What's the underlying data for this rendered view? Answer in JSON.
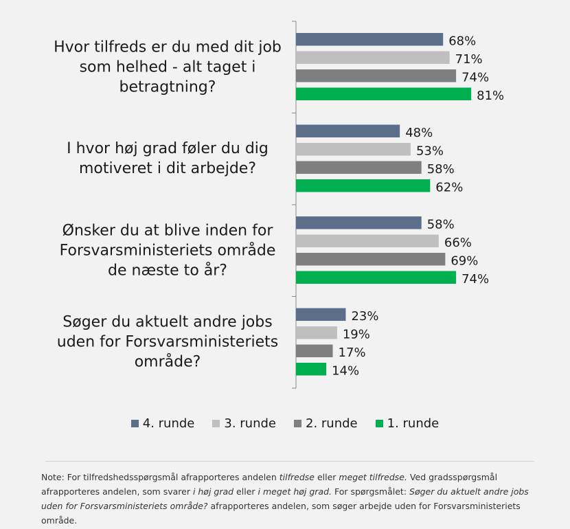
{
  "chart_data": {
    "type": "bar",
    "orientation": "horizontal",
    "categories": [
      "Hvor tilfreds er du med dit job som helhed - alt taget i betragtning?",
      "I hvor høj grad føler du dig motiveret i dit arbejde?",
      "Ønsker du at blive inden for Forsvarsministeriets område de næste to år?",
      "Søger du aktuelt andre jobs uden for Forsvarsministeriets område?"
    ],
    "series": [
      {
        "name": "4. runde",
        "color": "#5b6e8a",
        "values": [
          68,
          48,
          58,
          23
        ],
        "labels": [
          "68%",
          "48%",
          "58%",
          "23%"
        ]
      },
      {
        "name": "3. runde",
        "color": "#bfbfbf",
        "values": [
          71,
          53,
          66,
          19
        ],
        "labels": [
          "71%",
          "53%",
          "66%",
          "19%"
        ]
      },
      {
        "name": "2. runde",
        "color": "#7f7f7f",
        "values": [
          74,
          58,
          69,
          17
        ],
        "labels": [
          "74%",
          "58%",
          "69%",
          "17%"
        ]
      },
      {
        "name": "1. runde",
        "color": "#00b050",
        "values": [
          81,
          62,
          74,
          14
        ],
        "labels": [
          "81%",
          "62%",
          "74%",
          "14%"
        ]
      }
    ],
    "legend_position": "bottom",
    "grid": false,
    "xlim": [
      0,
      100
    ]
  },
  "category_lines": [
    [
      "Hvor tilfreds er du med dit job",
      "som helhed - alt taget i",
      "betragtning?"
    ],
    [
      "I hvor høj grad føler du dig",
      "motiveret i dit arbejde?"
    ],
    [
      "Ønsker du at blive inden for",
      "Forsvarsministeriets område",
      "de næste to år?"
    ],
    [
      "Søger du aktuelt andre jobs",
      "uden for Forsvarsministeriets",
      "område?"
    ]
  ],
  "note": {
    "p1": "Note: For tilfredshedsspørgsmål afrapporteres andelen ",
    "e1": "tilfredse",
    "p2": " eller ",
    "e2": "meget tilfredse.",
    "p3": " Ved gradsspørgsmål afrapporteres andelen, som svarer ",
    "e3": "i høj grad",
    "p4": " eller  ",
    "e4": "i meget høj grad.",
    "p5": " For spørgsmålet: ",
    "e5": "Søger du aktuelt andre jobs uden for Forsvarsministeriets område?",
    "p6": " afrapporteres andelen, som søger arbejde uden for Forsvarsministeriets område."
  }
}
